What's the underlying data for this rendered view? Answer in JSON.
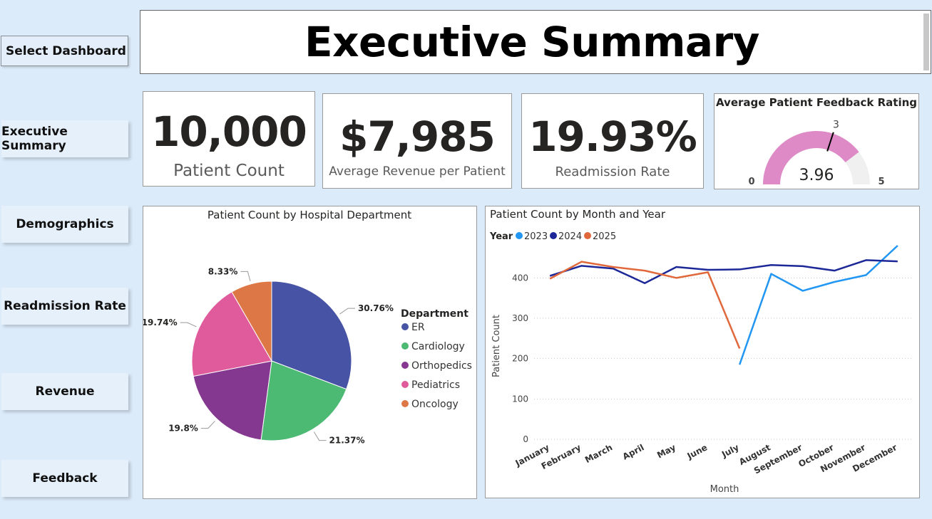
{
  "nav": {
    "select_label": "Select Dashboard",
    "items": [
      "Executive Summary",
      "Demographics",
      "Readmission Rate",
      "Revenue",
      "Feedback"
    ]
  },
  "header": {
    "title": "Executive Summary"
  },
  "kpis": {
    "patient_count": {
      "value": "10,000",
      "label": "Patient Count"
    },
    "avg_revenue": {
      "value": "$7,985",
      "label": "Average Revenue per Patient"
    },
    "readmission": {
      "value": "19.93%",
      "label": "Readmission Rate"
    }
  },
  "gauge": {
    "title": "Average Patient Feedback Rating",
    "value": 3.96,
    "value_text": "3.96",
    "min": 0,
    "max": 5,
    "target": 3,
    "min_text": "0",
    "max_text": "5",
    "target_text": "3",
    "fill_color": "#de8ac6",
    "track_color": "#f0f0f0"
  },
  "colors": {
    "ER": "#4753a4",
    "Cardiology": "#4cba73",
    "Orthopedics": "#853890",
    "Pediatrics": "#df5b9b",
    "Oncology": "#dd7745",
    "y2023": "#2196f3",
    "y2024": "#1d2898",
    "y2025": "#e0683b"
  },
  "chart_data": [
    {
      "type": "pie",
      "title": "Patient Count by Hospital Department",
      "legend_title": "Department",
      "legend_position": "right",
      "categories": [
        "ER",
        "Cardiology",
        "Orthopedics",
        "Pediatrics",
        "Oncology"
      ],
      "values": [
        30.76,
        21.37,
        19.8,
        19.74,
        8.33
      ],
      "labels": [
        "30.76%",
        "21.37%",
        "19.8%",
        "19.74%",
        "8.33%"
      ]
    },
    {
      "type": "line",
      "title": "Patient Count by Month and Year",
      "legend_title": "Year",
      "legend_position": "top-left",
      "xlabel": "Month",
      "ylabel": "Patient Count",
      "x": [
        "January",
        "February",
        "March",
        "April",
        "May",
        "June",
        "July",
        "August",
        "September",
        "October",
        "November",
        "December"
      ],
      "ylim": [
        0,
        480
      ],
      "yticks": [
        0,
        100,
        200,
        300,
        400
      ],
      "grid": true,
      "series": [
        {
          "name": "2023",
          "values": [
            null,
            null,
            null,
            null,
            null,
            null,
            185,
            410,
            368,
            390,
            407,
            480
          ]
        },
        {
          "name": "2024",
          "values": [
            405,
            430,
            423,
            387,
            427,
            420,
            421,
            432,
            429,
            418,
            444,
            441
          ]
        },
        {
          "name": "2025",
          "values": [
            398,
            440,
            427,
            418,
            400,
            414,
            225,
            null,
            null,
            null,
            null,
            null
          ]
        }
      ]
    }
  ]
}
